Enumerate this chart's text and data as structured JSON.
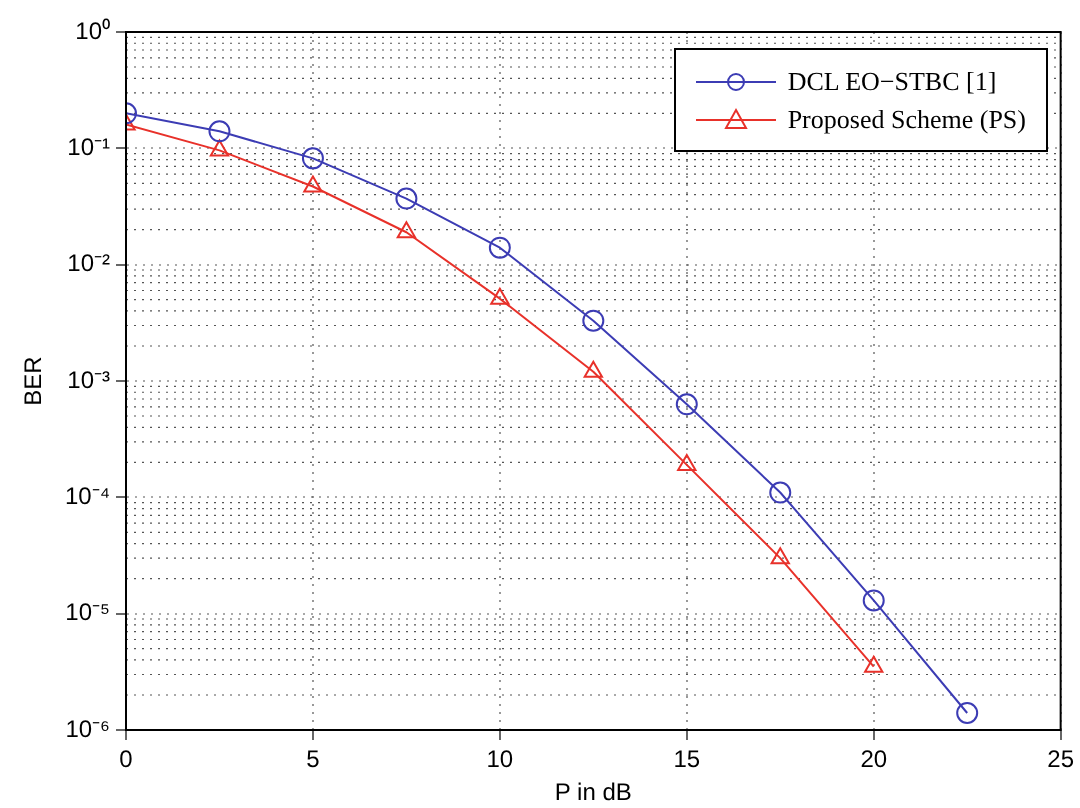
{
  "chart_data": {
    "type": "line",
    "xlabel": "P in dB",
    "ylabel": "BER",
    "log": "y",
    "grid": true,
    "legend": "top right",
    "marker": "circle",
    "line_style": "solid",
    "x": [
      0,
      2.5,
      5,
      7.5,
      10,
      12.5,
      15,
      17.5,
      20,
      22.5
    ],
    "xlim": [
      0,
      25
    ],
    "xticks": [
      0,
      5,
      10,
      15,
      20,
      25
    ],
    "ylim": [
      1e-06,
      1
    ],
    "yticks": [
      {
        "value": 1e-06,
        "label": "10⁻⁶"
      },
      {
        "value": 1e-05,
        "label": "10⁻⁵"
      },
      {
        "value": 0.0001,
        "label": "10⁻⁴"
      },
      {
        "value": 0.001,
        "label": "10⁻³"
      },
      {
        "value": 0.01,
        "label": "10⁻²"
      },
      {
        "value": 0.1,
        "label": "10⁻¹"
      },
      {
        "value": 1,
        "label": "10⁰"
      }
    ],
    "series": [
      {
        "name": "DCL EO−STBC [1]",
        "color": "#3c3cb4",
        "marker": "circle",
        "values": [
          0.2,
          0.14,
          0.082,
          0.037,
          0.014,
          0.0033,
          0.00063,
          0.00011,
          1.3e-05,
          1.4e-06
        ]
      },
      {
        "name": "Proposed Scheme (PS)",
        "color": "#e8312a",
        "marker": "triangle",
        "values": [
          0.16,
          0.096,
          0.047,
          0.019,
          0.0051,
          0.0012,
          0.00019,
          3e-05,
          3.5e-06,
          null
        ]
      }
    ]
  }
}
